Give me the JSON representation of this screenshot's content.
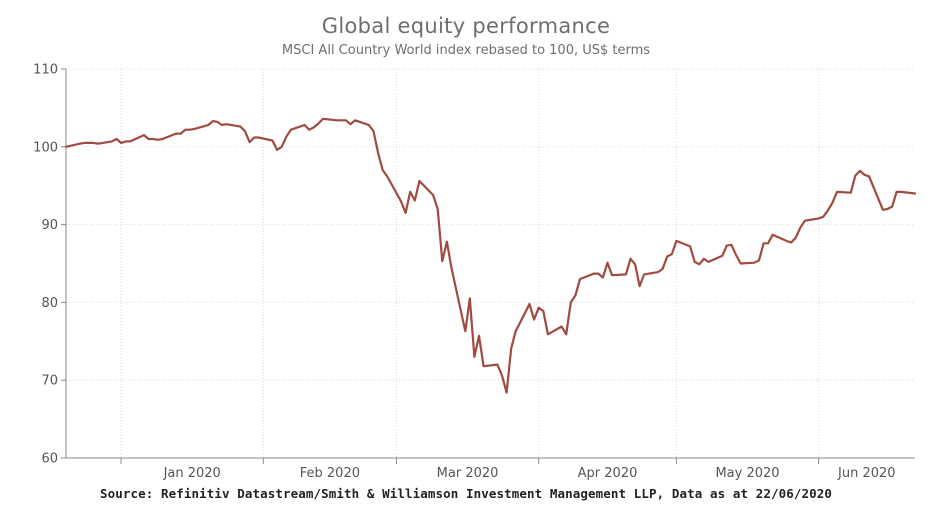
{
  "title": "Global equity performance",
  "subtitle": "MSCI All Country World index rebased to 100, US$ terms",
  "source": "Source: Refinitiv Datastream/Smith & Williamson Investment Management LLP, Data as at 22/06/2020",
  "colors": {
    "line": "#a04a40",
    "grid": "#d9d9d9",
    "axis": "#8a8a8a"
  },
  "chart_data": {
    "type": "line",
    "title": "Global equity performance",
    "subtitle": "MSCI All Country World index rebased to 100, US$ terms",
    "xlabel": "",
    "ylabel": "",
    "ylim": [
      60,
      110
    ],
    "yticks": [
      60,
      70,
      80,
      90,
      100,
      110
    ],
    "xlim": [
      "2019-12-20",
      "2020-06-22"
    ],
    "xticks": [
      {
        "date": "2020-01-01",
        "label": "Jan 2020"
      },
      {
        "date": "2020-02-01",
        "label": "Feb 2020"
      },
      {
        "date": "2020-03-01",
        "label": "Mar 2020"
      },
      {
        "date": "2020-04-01",
        "label": "Apr 2020"
      },
      {
        "date": "2020-05-01",
        "label": "May 2020"
      },
      {
        "date": "2020-06-01",
        "label": "Jun 2020"
      }
    ],
    "grid": true,
    "series": [
      {
        "x": [
          "2019-12-20",
          "2019-12-23",
          "2019-12-24",
          "2019-12-26",
          "2019-12-27",
          "2019-12-30",
          "2019-12-31",
          "2020-01-01",
          "2020-01-02",
          "2020-01-03",
          "2020-01-06",
          "2020-01-07",
          "2020-01-08",
          "2020-01-09",
          "2020-01-10",
          "2020-01-13",
          "2020-01-14",
          "2020-01-15",
          "2020-01-16",
          "2020-01-17",
          "2020-01-20",
          "2020-01-21",
          "2020-01-22",
          "2020-01-23",
          "2020-01-24",
          "2020-01-27",
          "2020-01-28",
          "2020-01-29",
          "2020-01-30",
          "2020-01-31",
          "2020-02-03",
          "2020-02-04",
          "2020-02-05",
          "2020-02-06",
          "2020-02-07",
          "2020-02-10",
          "2020-02-11",
          "2020-02-12",
          "2020-02-13",
          "2020-02-14",
          "2020-02-17",
          "2020-02-18",
          "2020-02-19",
          "2020-02-20",
          "2020-02-21",
          "2020-02-24",
          "2020-02-25",
          "2020-02-26",
          "2020-02-27",
          "2020-02-28",
          "2020-03-02",
          "2020-03-03",
          "2020-03-04",
          "2020-03-05",
          "2020-03-06",
          "2020-03-09",
          "2020-03-10",
          "2020-03-11",
          "2020-03-12",
          "2020-03-13",
          "2020-03-16",
          "2020-03-17",
          "2020-03-18",
          "2020-03-19",
          "2020-03-20",
          "2020-03-23",
          "2020-03-24",
          "2020-03-25",
          "2020-03-26",
          "2020-03-27",
          "2020-03-30",
          "2020-03-31",
          "2020-04-01",
          "2020-04-02",
          "2020-04-03",
          "2020-04-06",
          "2020-04-07",
          "2020-04-08",
          "2020-04-09",
          "2020-04-10",
          "2020-04-13",
          "2020-04-14",
          "2020-04-15",
          "2020-04-16",
          "2020-04-17",
          "2020-04-20",
          "2020-04-21",
          "2020-04-22",
          "2020-04-23",
          "2020-04-24",
          "2020-04-27",
          "2020-04-28",
          "2020-04-29",
          "2020-04-30",
          "2020-05-01",
          "2020-05-04",
          "2020-05-05",
          "2020-05-06",
          "2020-05-07",
          "2020-05-08",
          "2020-05-11",
          "2020-05-12",
          "2020-05-13",
          "2020-05-14",
          "2020-05-15",
          "2020-05-18",
          "2020-05-19",
          "2020-05-20",
          "2020-05-21",
          "2020-05-22",
          "2020-05-25",
          "2020-05-26",
          "2020-05-27",
          "2020-05-28",
          "2020-05-29",
          "2020-06-01",
          "2020-06-02",
          "2020-06-03",
          "2020-06-04",
          "2020-06-05",
          "2020-06-08",
          "2020-06-09",
          "2020-06-10",
          "2020-06-11",
          "2020-06-12",
          "2020-06-15",
          "2020-06-16",
          "2020-06-17",
          "2020-06-18",
          "2020-06-19",
          "2020-06-22"
        ],
        "values": [
          100.0,
          100.4,
          100.5,
          100.5,
          100.4,
          100.7,
          101.0,
          100.5,
          100.7,
          100.7,
          101.5,
          101.0,
          101.0,
          100.9,
          101.0,
          101.7,
          101.7,
          102.2,
          102.2,
          102.3,
          102.8,
          103.3,
          103.2,
          102.8,
          102.9,
          102.6,
          102.0,
          100.6,
          101.2,
          101.2,
          100.8,
          99.6,
          100.0,
          101.3,
          102.2,
          102.8,
          102.2,
          102.5,
          103.0,
          103.6,
          103.4,
          103.4,
          103.4,
          102.9,
          103.4,
          102.8,
          102.0,
          99.2,
          97.0,
          96.2,
          93.0,
          91.5,
          94.2,
          93.1,
          95.6,
          93.8,
          92.0,
          85.3,
          87.8,
          84.4,
          76.3,
          80.5,
          73.0,
          75.7,
          71.8,
          72.0,
          70.6,
          68.4,
          74.1,
          76.3,
          79.8,
          77.8,
          79.3,
          78.9,
          75.9,
          76.9,
          75.9,
          80.0,
          80.9,
          83.0,
          83.7,
          83.7,
          83.2,
          85.1,
          83.5,
          83.6,
          85.6,
          84.9,
          82.1,
          83.6,
          83.9,
          84.3,
          85.9,
          86.2,
          87.9,
          87.2,
          85.2,
          84.9,
          85.6,
          85.2,
          86.0,
          87.3,
          87.4,
          86.1,
          85.0,
          85.1,
          85.4,
          87.6,
          87.6,
          88.7,
          87.9,
          87.7,
          88.3,
          89.6,
          90.5,
          90.8,
          91.0,
          91.8,
          92.8,
          94.2,
          94.1,
          96.3,
          96.9,
          96.4,
          96.2,
          91.9,
          92.0,
          92.3,
          94.2,
          94.2,
          94.0
        ]
      }
    ]
  }
}
